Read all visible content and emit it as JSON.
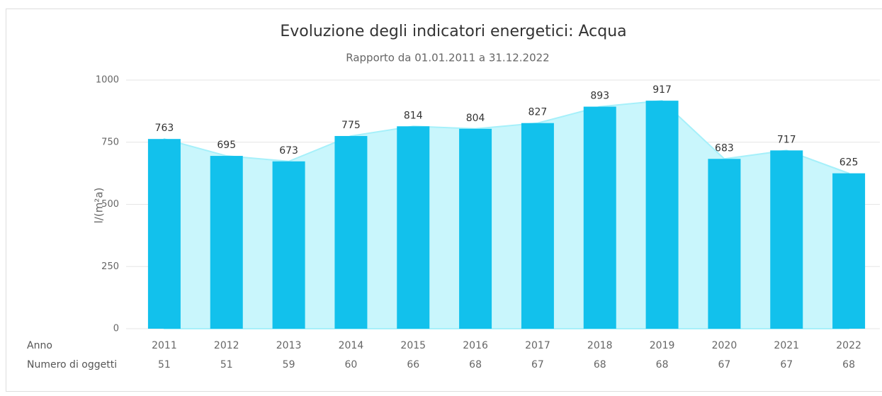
{
  "chart_data": {
    "type": "bar",
    "title": "Evoluzione degli indicatori energetici: Acqua",
    "subtitle": "Rapporto da 01.01.2011 a 31.12.2022",
    "y_label": "l/(m²a)",
    "x_row_label": "Anno",
    "count_row_label": "Numero di oggetti",
    "categories": [
      "2011",
      "2012",
      "2013",
      "2014",
      "2015",
      "2016",
      "2017",
      "2018",
      "2019",
      "2020",
      "2021",
      "2022"
    ],
    "values": [
      763,
      695,
      673,
      775,
      814,
      804,
      827,
      893,
      917,
      683,
      717,
      625
    ],
    "counts": [
      51,
      51,
      59,
      60,
      66,
      68,
      67,
      68,
      68,
      67,
      67,
      68
    ],
    "color": "#12c1ec",
    "area_color": "#c9f6fc",
    "ylim": [
      0,
      1000
    ],
    "yticks": [
      0,
      250,
      500,
      750,
      1000
    ],
    "grid": true
  }
}
